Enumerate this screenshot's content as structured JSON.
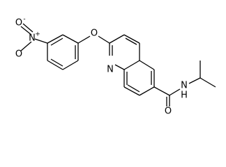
{
  "atoms": [
    {
      "label": "O",
      "charge": "-"
    },
    {
      "label": "N",
      "charge": "+"
    },
    {
      "label": "O"
    },
    {
      "label": "O"
    },
    {
      "label": "N"
    },
    {
      "label": "O"
    },
    {
      "label": "N"
    },
    {
      "label": "H"
    }
  ]
}
